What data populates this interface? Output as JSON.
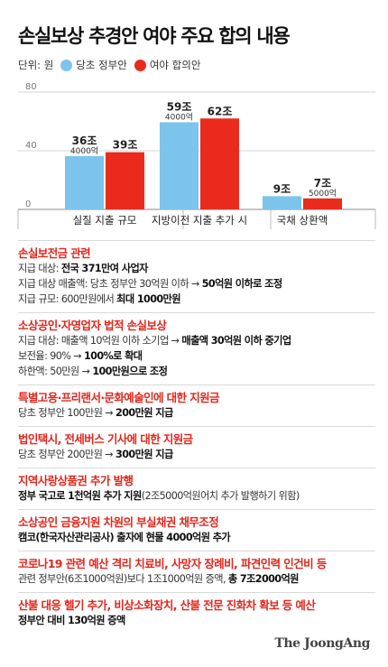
{
  "title": "손실보상 추경안 여야 주요 합의 내용",
  "legend": {
    "unit": "단위: 원",
    "items": [
      {
        "label": "당초 정부안",
        "color": "#7cc4ec"
      },
      {
        "label": "여야 합의안",
        "color": "#ea2a1c"
      }
    ]
  },
  "chart_data": {
    "type": "bar",
    "categories": [
      "실질 지출 규모",
      "지방이전 지출 추가 시",
      "국채 상환액"
    ],
    "series": [
      {
        "name": "당초 정부안",
        "values": [
          36.4,
          59.4,
          9
        ],
        "labels": [
          "36조",
          "59조",
          "9조"
        ],
        "sublabels": [
          "4000억",
          "4000억",
          ""
        ],
        "color": "#7cc4ec"
      },
      {
        "name": "여야 합의안",
        "values": [
          39,
          62,
          7.5
        ],
        "labels": [
          "39조",
          "62조",
          "7조"
        ],
        "sublabels": [
          "",
          "",
          "5000억"
        ],
        "color": "#ea2a1c"
      }
    ],
    "yticks": [
      "80",
      "40",
      "0"
    ],
    "ylim": [
      0,
      80
    ]
  },
  "sections": [
    {
      "title": "손실보전금 관련",
      "lines": [
        [
          "지급 대상: ",
          "전국 371만여 사업자"
        ],
        [
          "지급 대상 매출액: 당초 정부안 30억원 이하 → ",
          "50억원 이하로 조정"
        ],
        [
          "지급 규모: 600만원에서 ",
          "최대 1000만원"
        ]
      ]
    },
    {
      "title": "소상공인·자영업자 법적 손실보상",
      "lines": [
        [
          "지급 대상: 매출액 10억원 이하 소기업 → ",
          "매출액 30억원 이하 중기업"
        ],
        [
          "보전율: 90% → ",
          "100%로 확대"
        ],
        [
          "하한액: 50만원 → ",
          "100만원으로 조정"
        ]
      ]
    },
    {
      "title": "특별고용·프리랜서·문화예술인에 대한 지원금",
      "lines": [
        [
          "당초 정부안 100만원 → ",
          "200만원 지급"
        ]
      ]
    },
    {
      "title": "법인택시, 전세버스 기사에 대한 지원금",
      "lines": [
        [
          "당초 정부안 200만원 → ",
          "300만원 지급"
        ]
      ]
    },
    {
      "title": "지역사랑상품권 추가 발행",
      "lines": [
        [
          "",
          "정부 국고로 1천억원 추가 지원",
          "(2조5000억원어치 추가 발행하기 위함)"
        ]
      ]
    },
    {
      "title": "소상공인 금융지원 차원의 부실채권 채무조정",
      "lines": [
        [
          "",
          "캠코(한국자산관리공사) 출자에 현물 4000억원 추가"
        ]
      ]
    },
    {
      "title": "코로나19 관련 예산 격리 치료비, 사망자 장례비, 파견인력 인건비 등",
      "lines": [
        [
          "관련 정부안(6조1000억원)보다 1조1000억원 증액, ",
          "총 7조2000억원"
        ]
      ]
    },
    {
      "title": "산불 대응 헬기 추가, 비상소화장치, 산불 전문 진화차 확보 등 예산",
      "lines": [
        [
          "",
          "정부안 대비 130억원 증액"
        ]
      ]
    }
  ],
  "logo": "The JoongAng"
}
